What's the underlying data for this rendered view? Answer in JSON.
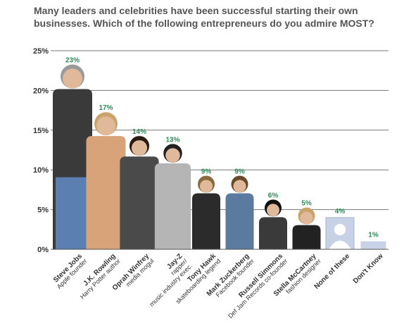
{
  "question": "Many leaders and celebrities have been successful starting their own businesses. Which of the following entrepreneurs do you admire MOST?",
  "chart_data": {
    "type": "bar",
    "ylim": [
      0,
      25
    ],
    "yticks": [
      "0%",
      "5%",
      "10%",
      "15%",
      "20%",
      "25%"
    ],
    "grid": true,
    "categories": [
      {
        "name": "Steve Jobs",
        "subtitle": [
          "Apple founder"
        ]
      },
      {
        "name": "J.K. Rowling",
        "subtitle": [
          "Harry Potter author"
        ]
      },
      {
        "name": "Oprah Winfrey",
        "subtitle": [
          "media mogul"
        ]
      },
      {
        "name": "Jay-Z",
        "subtitle": [
          "rapper/",
          "music industry exec."
        ]
      },
      {
        "name": "Tony Hawk",
        "subtitle": [
          "skateboarding legend"
        ]
      },
      {
        "name": "Mark Zuckerberg",
        "subtitle": [
          "Facebook founder"
        ]
      },
      {
        "name": "Russell Simmons",
        "subtitle": [
          "Def Jam Records co-founder"
        ]
      },
      {
        "name": "Stella McCartney",
        "subtitle": [
          "fashion designer"
        ]
      },
      {
        "name": "None of these",
        "subtitle": []
      },
      {
        "name": "Don't Know",
        "subtitle": []
      }
    ],
    "values": [
      23,
      17,
      14,
      13,
      9,
      9,
      6,
      5,
      4,
      1
    ],
    "labels": [
      "23%",
      "17%",
      "14%",
      "13%",
      "9%",
      "9%",
      "6%",
      "5%",
      "4%",
      "1%"
    ],
    "colors": {
      "label": "#2e8b57",
      "grid": "#777777",
      "skin": "#e0b99a",
      "hair_dark": "#3a2a20",
      "hair_blond": "#c9a36a",
      "placeholder": "#c8d2e6",
      "placeholder_head": "#ffffff"
    },
    "figures": [
      {
        "icon": "steve-jobs-photo",
        "shirt": "#3a3a3a",
        "pants": "#5b7fb0",
        "hair": "#9a9a9a"
      },
      {
        "icon": "jk-rowling-photo",
        "shirt": "#d9a37a",
        "pants": "#d9a37a",
        "hair": "#c9a36a"
      },
      {
        "icon": "oprah-winfrey-photo",
        "shirt": "#4a4a4a",
        "pants": "#4a4a4a",
        "hair": "#2a1a10"
      },
      {
        "icon": "jay-z-photo",
        "shirt": "#b5b5b5",
        "pants": "#b5b5b5",
        "hair": "#222222"
      },
      {
        "icon": "tony-hawk-photo",
        "shirt": "#2b2b2b",
        "pants": "#2b2b2b",
        "hair": "#8a6a40"
      },
      {
        "icon": "mark-zuckerberg-photo",
        "shirt": "#5a7aa0",
        "pants": "#5a7aa0",
        "hair": "#6a4a2a"
      },
      {
        "icon": "russell-simmons-photo",
        "shirt": "#3a3a3a",
        "pants": "#3a3a3a",
        "hair": "#111111"
      },
      {
        "icon": "stella-mccartney-photo",
        "shirt": "#222222",
        "pants": "#222222",
        "hair": "#c9a36a"
      },
      {
        "icon": "placeholder-person-icon",
        "shirt": "#c8d2e6",
        "pants": "#c8d2e6",
        "hair": "#ffffff"
      },
      {
        "icon": "empty-bar",
        "shirt": "#c8d2e6",
        "pants": "#c8d2e6",
        "hair": "#c8d2e6"
      }
    ]
  }
}
